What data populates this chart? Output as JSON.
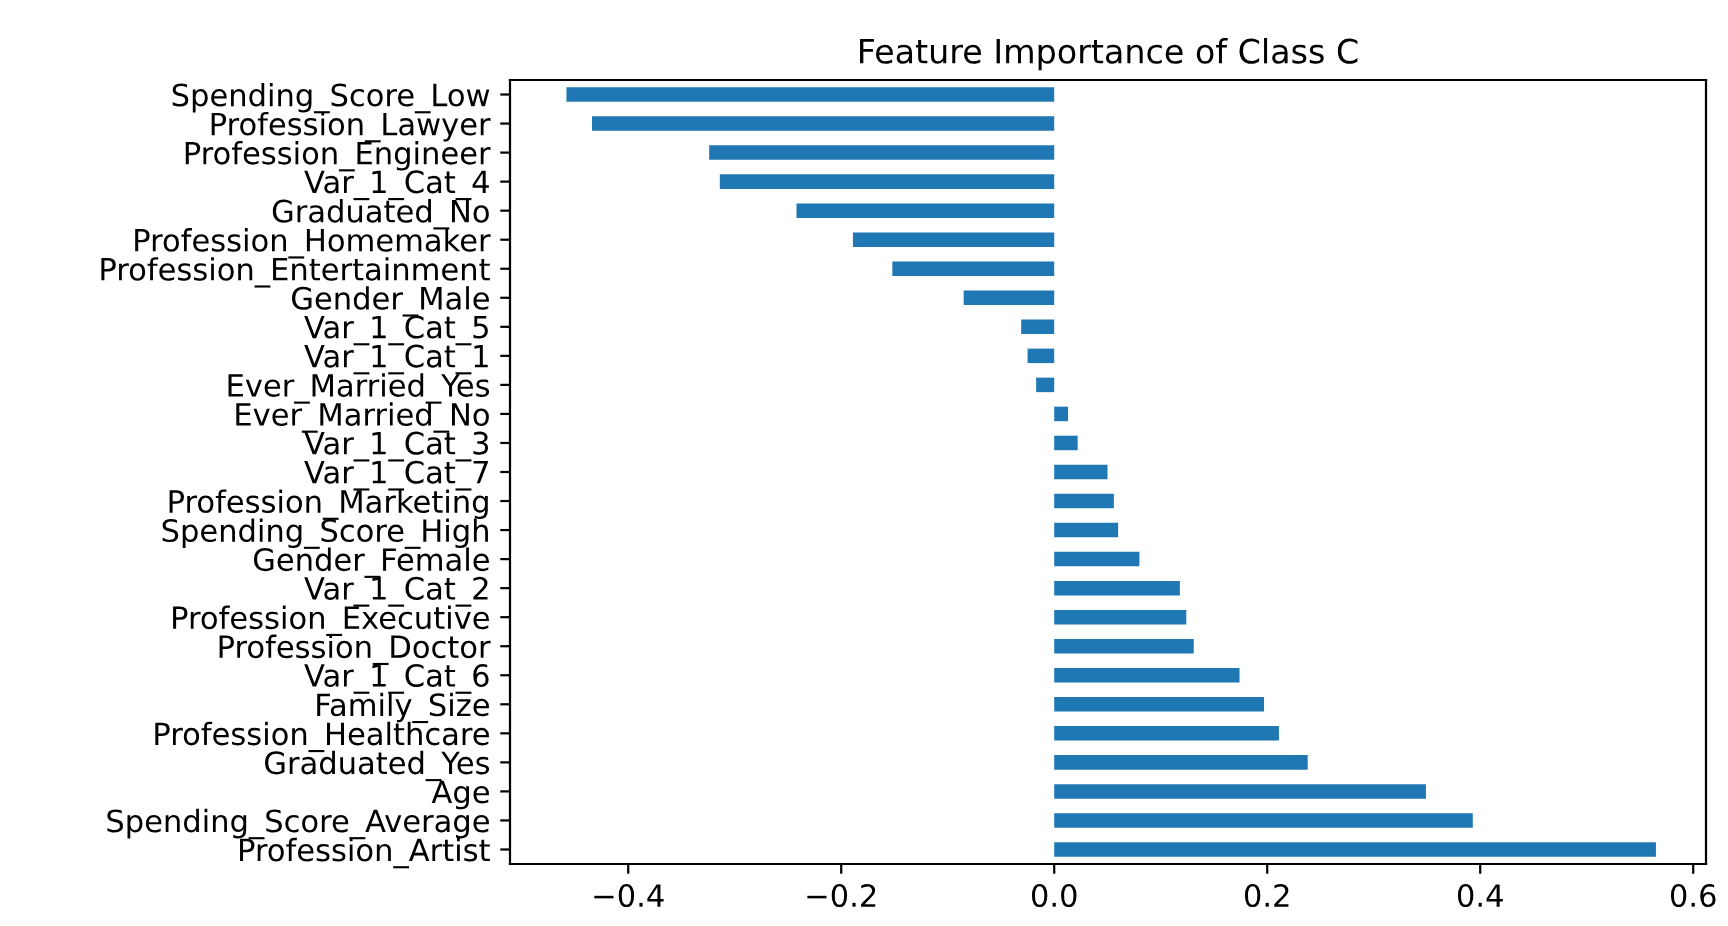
{
  "chart_data": {
    "type": "bar",
    "orientation": "horizontal",
    "title": "Feature Importance of Class C",
    "categories": [
      "Spending_Score_Low",
      "Profession_Lawyer",
      "Profession_Engineer",
      "Var_1_Cat_4",
      "Graduated_No",
      "Profession_Homemaker",
      "Profession_Entertainment",
      "Gender_Male",
      "Var_1_Cat_5",
      "Var_1_Cat_1",
      "Ever_Married_Yes",
      "Ever_Married_No",
      "Var_1_Cat_3",
      "Var_1_Cat_7",
      "Profession_Marketing",
      "Spending_Score_High",
      "Gender_Female",
      "Var_1_Cat_2",
      "Profession_Executive",
      "Profession_Doctor",
      "Var_1_Cat_6",
      "Family_Size",
      "Profession_Healthcare",
      "Graduated_Yes",
      "Age",
      "Spending_Score_Average",
      "Profession_Artist"
    ],
    "values": [
      -0.458,
      -0.434,
      -0.324,
      -0.314,
      -0.242,
      -0.189,
      -0.152,
      -0.085,
      -0.031,
      -0.025,
      -0.017,
      0.013,
      0.022,
      0.05,
      0.056,
      0.06,
      0.08,
      0.118,
      0.124,
      0.131,
      0.174,
      0.197,
      0.211,
      0.238,
      0.349,
      0.393,
      0.565
    ],
    "color": "#1f77b4",
    "xlim": [
      -0.511,
      0.612
    ],
    "xticks": [
      {
        "value": -0.4,
        "label": "−0.4"
      },
      {
        "value": -0.2,
        "label": "−0.2"
      },
      {
        "value": 0.0,
        "label": "0.0"
      },
      {
        "value": 0.2,
        "label": "0.2"
      },
      {
        "value": 0.4,
        "label": "0.4"
      },
      {
        "value": 0.6,
        "label": "0.6"
      }
    ],
    "grid": false,
    "legend": false
  }
}
